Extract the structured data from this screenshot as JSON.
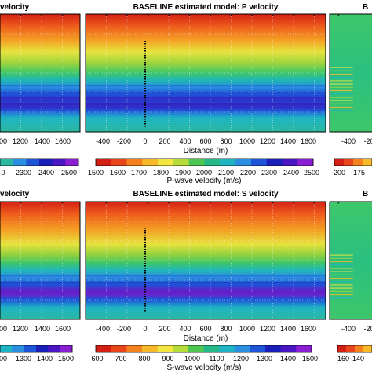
{
  "colors": {
    "cscale": [
      "#d42014",
      "#e8461a",
      "#f4801e",
      "#f7b82a",
      "#f4e640",
      "#b6dc3a",
      "#4fc652",
      "#27b889",
      "#1fb4c4",
      "#2a8fe0",
      "#1d54d8",
      "#1a1fb8",
      "#4a16c4",
      "#8a1ed2"
    ],
    "frame": "#000000",
    "wells": "#000000"
  },
  "top_row": {
    "left_title": "velocity",
    "mid_title": "BASELINE estimated model: P velocity",
    "right_title": "B",
    "left_xticks": [
      "00",
      "1200",
      "1400",
      "1600"
    ],
    "mid_xticks": [
      "-400",
      "-200",
      "0",
      "200",
      "400",
      "600",
      "800",
      "1000",
      "1200",
      "1400",
      "1600"
    ],
    "right_xticks": [
      "-400",
      "-20"
    ],
    "xlabel": "Distance (m)",
    "left_cbar_ticks": [
      "0",
      "2300",
      "2400",
      "2500"
    ],
    "mid_cbar_ticks": [
      "1500",
      "1600",
      "1700",
      "1800",
      "1900",
      "2000",
      "2100",
      "2200",
      "2300",
      "2400",
      "2500"
    ],
    "right_cbar_ticks": [
      "-200",
      "-175",
      "-"
    ],
    "cbar_label": "P-wave velocity (m/s)"
  },
  "bottom_row": {
    "left_title": "velocity",
    "mid_title": "BASELINE estimated model: S velocity",
    "right_title": "B",
    "left_xticks": [
      "00",
      "1200",
      "1400",
      "1600"
    ],
    "mid_xticks": [
      "-400",
      "-200",
      "0",
      "200",
      "400",
      "600",
      "800",
      "1000",
      "1200",
      "1400",
      "1600"
    ],
    "right_xticks": [
      "-400",
      "-20"
    ],
    "xlabel": "Distance (m)",
    "left_cbar_ticks": [
      "00",
      "1300",
      "1400",
      "1500"
    ],
    "mid_cbar_ticks": [
      "600",
      "700",
      "800",
      "900",
      "1000",
      "1100",
      "1200",
      "1300",
      "1400",
      "1500"
    ],
    "right_cbar_ticks": [
      "-160",
      "-140",
      "-"
    ],
    "cbar_label": "S-wave velocity (m/s)"
  }
}
